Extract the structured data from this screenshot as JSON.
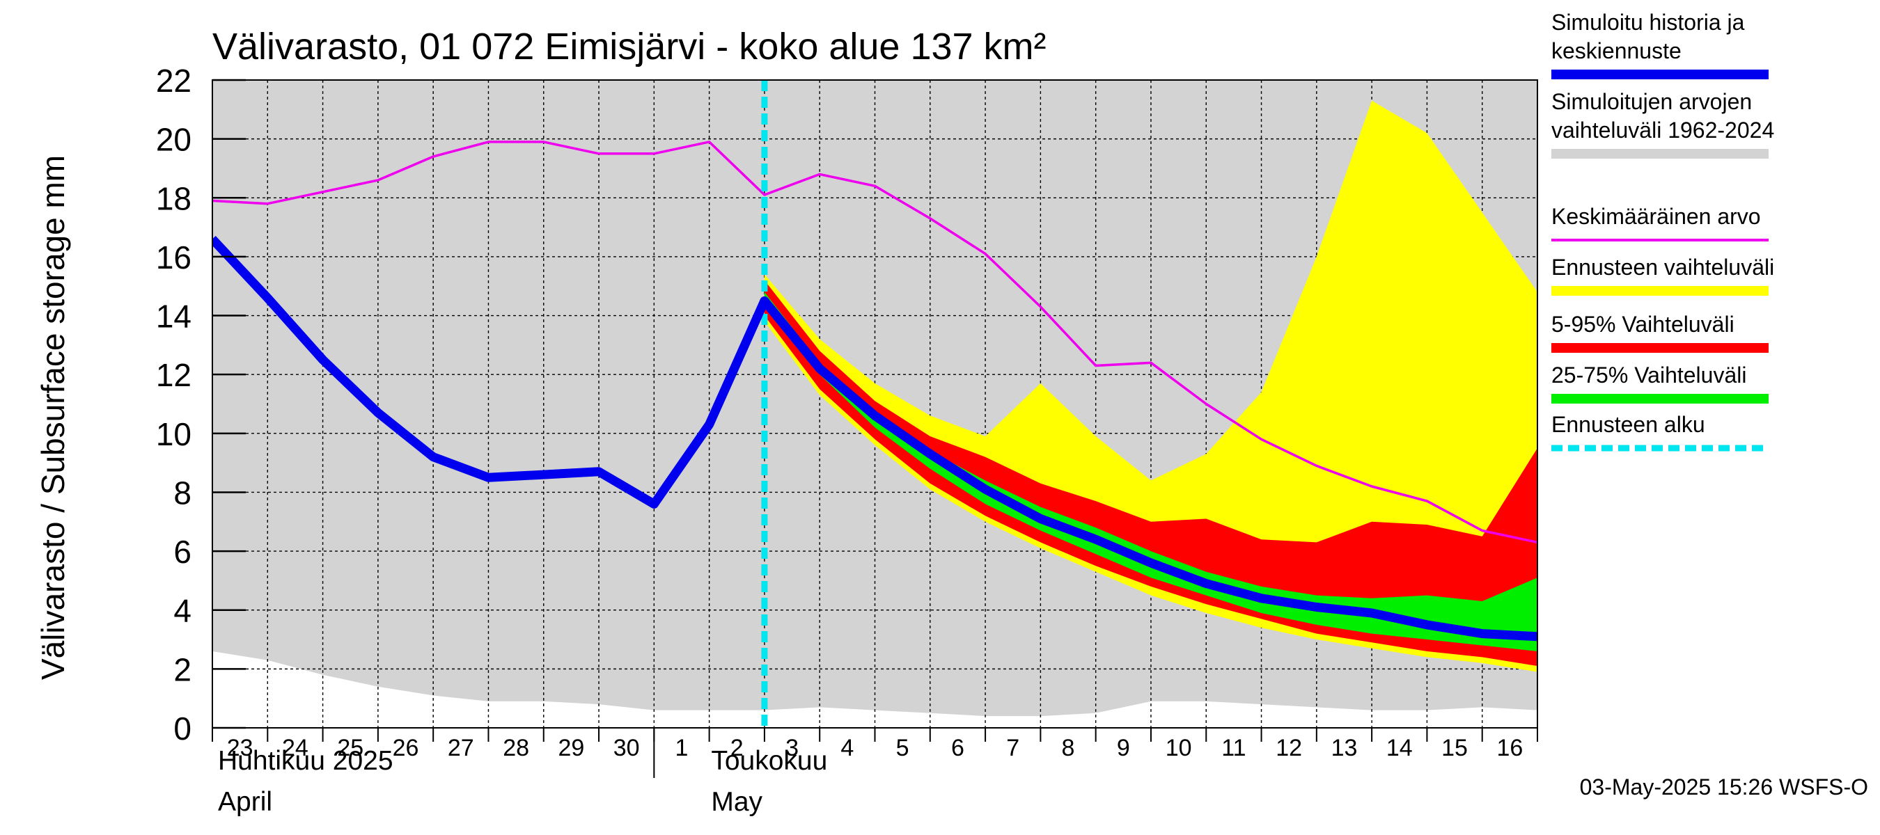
{
  "title": "Välivarasto, 01 072 Eimisjärvi - koko alue 137 km²",
  "ylabel": "Välivarasto / Subsurface storage  mm",
  "timestamp": "03-May-2025 15:26 WSFS-O",
  "months": [
    {
      "label": "Huhtikuu  2025",
      "sub": "April"
    },
    {
      "label": "Toukokuu",
      "sub": "May"
    }
  ],
  "legend": [
    {
      "label": "Simuloitu historia ja keskiennuste",
      "lines": [
        "Simuloitu historia ja",
        "keskiennuste"
      ],
      "color": "#0000ee",
      "style": "line"
    },
    {
      "label": "Simuloitujen arvojen vaihteluväli 1962-2024",
      "lines": [
        "Simuloitujen arvojen",
        "vaihteluväli 1962-2024"
      ],
      "color": "#d3d3d3",
      "style": "line"
    },
    {
      "label": "Keskimääräinen arvo",
      "lines": [
        "Keskimääräinen arvo"
      ],
      "color": "#ee00ee",
      "style": "thin"
    },
    {
      "label": "Ennusteen vaihteluväli",
      "lines": [
        "Ennusteen vaihteluväli"
      ],
      "color": "#ffff00",
      "style": "line"
    },
    {
      "label": "5-95% Vaihteluväli",
      "lines": [
        "5-95% Vaihteluväli"
      ],
      "color": "#ff0000",
      "style": "line"
    },
    {
      "label": "25-75% Vaihteluväli",
      "lines": [
        "25-75% Vaihteluväli"
      ],
      "color": "#00ee00",
      "style": "line"
    },
    {
      "label": "Ennusteen alku",
      "lines": [
        "Ennusteen alku"
      ],
      "color": "#00e5ee",
      "style": "dashed"
    }
  ],
  "chart_data": {
    "type": "area",
    "ylim": [
      0,
      22
    ],
    "yticks": [
      0,
      2,
      4,
      6,
      8,
      10,
      12,
      14,
      16,
      18,
      20,
      22
    ],
    "x_start_label": "23",
    "x_tick_labels": [
      "23",
      "24",
      "25",
      "26",
      "27",
      "28",
      "29",
      "30",
      "1",
      "2",
      "3",
      "4",
      "5",
      "6",
      "7",
      "8",
      "9",
      "10",
      "11",
      "12",
      "13",
      "14",
      "15",
      "16"
    ],
    "forecast_start_index": 10,
    "series": [
      {
        "name": "Simuloitujen arvojen vaihteluväli 1962-2024",
        "kind": "band",
        "color": "#d3d3d3",
        "x": [
          0,
          1,
          2,
          3,
          4,
          5,
          6,
          7,
          8,
          9,
          10,
          11,
          12,
          13,
          14,
          15,
          16,
          17,
          18,
          19,
          20,
          21,
          22,
          23,
          24
        ],
        "upper": [
          22,
          22,
          22,
          22,
          22,
          22,
          22,
          22,
          22,
          22,
          22,
          22,
          22,
          22,
          22,
          22,
          22,
          22,
          22,
          22,
          22,
          22,
          22,
          22,
          22
        ],
        "lower": [
          2.6,
          2.3,
          1.8,
          1.4,
          1.1,
          0.9,
          0.9,
          0.8,
          0.6,
          0.6,
          0.6,
          0.7,
          0.6,
          0.5,
          0.4,
          0.4,
          0.5,
          0.9,
          0.9,
          0.8,
          0.7,
          0.6,
          0.6,
          0.7,
          0.6
        ]
      },
      {
        "name": "Keskimääräinen arvo",
        "kind": "line",
        "color": "#ee00ee",
        "x": [
          0,
          1,
          2,
          3,
          4,
          5,
          6,
          7,
          8,
          9,
          10,
          11,
          12,
          13,
          14,
          15,
          16,
          17,
          18,
          19,
          20,
          21,
          22,
          23,
          24
        ],
        "values": [
          17.9,
          17.8,
          18.2,
          18.6,
          19.4,
          19.9,
          19.9,
          19.5,
          19.5,
          19.9,
          18.1,
          18.8,
          18.4,
          17.3,
          16.1,
          14.3,
          12.3,
          12.4,
          11.0,
          9.8,
          8.9,
          8.2,
          7.7,
          6.7,
          6.3
        ]
      },
      {
        "name": "Ennusteen vaihteluväli",
        "kind": "band",
        "color": "#ffff00",
        "x": [
          10,
          11,
          12,
          13,
          14,
          15,
          16,
          17,
          18,
          19,
          20,
          21,
          22,
          23,
          24
        ],
        "upper": [
          15.4,
          13.2,
          11.7,
          10.6,
          9.9,
          11.7,
          9.9,
          8.4,
          9.3,
          11.4,
          16.0,
          21.3,
          20.2,
          17.5,
          14.8
        ],
        "lower": [
          13.8,
          11.3,
          9.6,
          8.1,
          7.0,
          6.1,
          5.3,
          4.5,
          3.9,
          3.4,
          3.0,
          2.7,
          2.4,
          2.2,
          1.9
        ]
      },
      {
        "name": "5-95% Vaihteluväli",
        "kind": "band",
        "color": "#ff0000",
        "x": [
          10,
          11,
          12,
          13,
          14,
          15,
          16,
          17,
          18,
          19,
          20,
          21,
          22,
          23,
          24
        ],
        "upper": [
          15.2,
          12.8,
          11.1,
          9.9,
          9.2,
          8.3,
          7.7,
          7.0,
          7.1,
          6.4,
          6.3,
          7.0,
          6.9,
          6.5,
          9.5
        ],
        "lower": [
          14.0,
          11.5,
          9.8,
          8.3,
          7.2,
          6.3,
          5.5,
          4.8,
          4.2,
          3.7,
          3.2,
          2.9,
          2.6,
          2.4,
          2.1
        ]
      },
      {
        "name": "25-75% Vaihteluväli",
        "kind": "band",
        "color": "#00ee00",
        "x": [
          10,
          11,
          12,
          13,
          14,
          15,
          16,
          17,
          18,
          19,
          20,
          21,
          22,
          23,
          24
        ],
        "upper": [
          14.8,
          12.4,
          10.7,
          9.4,
          8.4,
          7.5,
          6.8,
          6.0,
          5.3,
          4.8,
          4.5,
          4.4,
          4.5,
          4.3,
          5.1
        ],
        "lower": [
          14.3,
          12.0,
          10.2,
          8.8,
          7.6,
          6.7,
          5.9,
          5.1,
          4.5,
          3.9,
          3.5,
          3.2,
          3.0,
          2.8,
          2.6
        ]
      },
      {
        "name": "Simuloitu historia ja keskiennuste",
        "kind": "line",
        "color": "#0000ee",
        "x": [
          0,
          1,
          2,
          3,
          4,
          5,
          6,
          7,
          8,
          9,
          10,
          11,
          12,
          13,
          14,
          15,
          16,
          17,
          18,
          19,
          20,
          21,
          22,
          23,
          24
        ],
        "values": [
          16.6,
          14.6,
          12.5,
          10.7,
          9.2,
          8.5,
          8.6,
          8.7,
          7.6,
          10.3,
          14.5,
          12.2,
          10.6,
          9.3,
          8.1,
          7.1,
          6.4,
          5.6,
          4.9,
          4.4,
          4.1,
          3.9,
          3.5,
          3.2,
          3.1
        ]
      }
    ]
  }
}
